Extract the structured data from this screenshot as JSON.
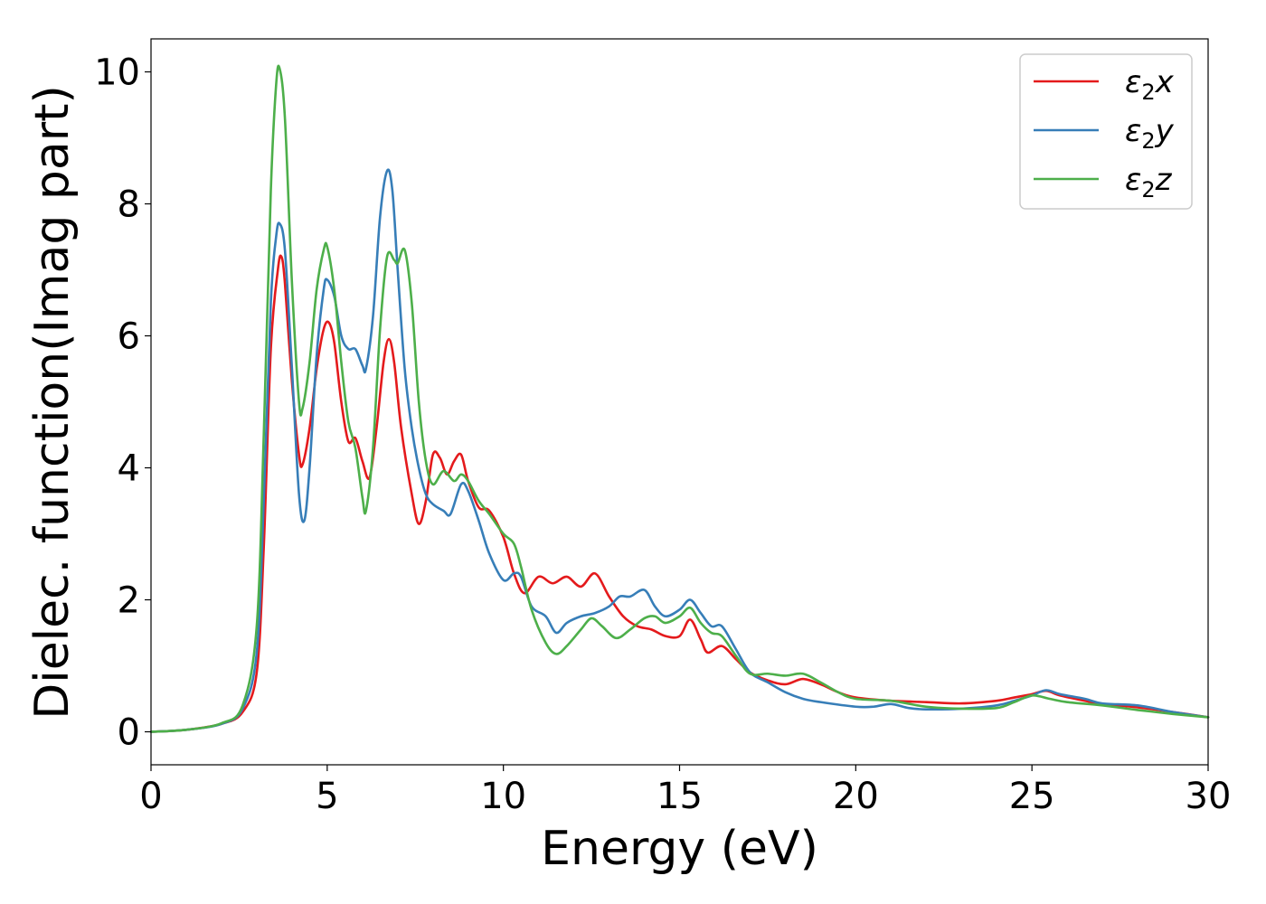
{
  "chart_data": {
    "type": "line",
    "xlabel": "Energy (eV)",
    "ylabel": "Dielec. function(Imag part)",
    "xlim": [
      0,
      30
    ],
    "ylim": [
      -0.5,
      10.5
    ],
    "xticks": [
      0,
      5,
      10,
      15,
      20,
      25,
      30
    ],
    "yticks": [
      0,
      2,
      4,
      6,
      8,
      10
    ],
    "grid": false,
    "legend_position": "top-right",
    "series": [
      {
        "name": "ε₂x",
        "legend_base": "ε",
        "legend_sub": "2",
        "legend_var": "x",
        "color": "#e41a1c",
        "points": [
          [
            0,
            0
          ],
          [
            1,
            0.03
          ],
          [
            2,
            0.12
          ],
          [
            2.6,
            0.3
          ],
          [
            3.0,
            0.9
          ],
          [
            3.2,
            2.8
          ],
          [
            3.4,
            5.8
          ],
          [
            3.6,
            7.0
          ],
          [
            3.7,
            7.2
          ],
          [
            3.8,
            6.8
          ],
          [
            4.0,
            5.3
          ],
          [
            4.2,
            4.2
          ],
          [
            4.3,
            4.05
          ],
          [
            4.5,
            4.6
          ],
          [
            4.7,
            5.5
          ],
          [
            4.9,
            6.1
          ],
          [
            5.05,
            6.2
          ],
          [
            5.2,
            5.9
          ],
          [
            5.4,
            5.0
          ],
          [
            5.6,
            4.4
          ],
          [
            5.8,
            4.45
          ],
          [
            6.0,
            4.1
          ],
          [
            6.2,
            3.85
          ],
          [
            6.4,
            4.6
          ],
          [
            6.6,
            5.6
          ],
          [
            6.75,
            5.95
          ],
          [
            6.9,
            5.6
          ],
          [
            7.1,
            4.6
          ],
          [
            7.4,
            3.6
          ],
          [
            7.6,
            3.15
          ],
          [
            7.8,
            3.5
          ],
          [
            8.0,
            4.2
          ],
          [
            8.2,
            4.15
          ],
          [
            8.4,
            3.9
          ],
          [
            8.6,
            4.1
          ],
          [
            8.8,
            4.2
          ],
          [
            9.0,
            3.8
          ],
          [
            9.3,
            3.4
          ],
          [
            9.6,
            3.35
          ],
          [
            10.0,
            2.95
          ],
          [
            10.3,
            2.4
          ],
          [
            10.6,
            2.1
          ],
          [
            11.0,
            2.35
          ],
          [
            11.4,
            2.25
          ],
          [
            11.8,
            2.35
          ],
          [
            12.2,
            2.2
          ],
          [
            12.6,
            2.4
          ],
          [
            13.0,
            2.05
          ],
          [
            13.4,
            1.75
          ],
          [
            13.8,
            1.6
          ],
          [
            14.2,
            1.55
          ],
          [
            14.6,
            1.45
          ],
          [
            15.0,
            1.45
          ],
          [
            15.3,
            1.7
          ],
          [
            15.6,
            1.4
          ],
          [
            15.8,
            1.2
          ],
          [
            16.2,
            1.3
          ],
          [
            16.6,
            1.1
          ],
          [
            17.0,
            0.9
          ],
          [
            17.5,
            0.78
          ],
          [
            18.0,
            0.72
          ],
          [
            18.5,
            0.8
          ],
          [
            19.0,
            0.72
          ],
          [
            19.5,
            0.6
          ],
          [
            20.0,
            0.52
          ],
          [
            21.0,
            0.47
          ],
          [
            22.0,
            0.45
          ],
          [
            23.0,
            0.43
          ],
          [
            24.0,
            0.47
          ],
          [
            24.5,
            0.52
          ],
          [
            25.0,
            0.57
          ],
          [
            25.4,
            0.62
          ],
          [
            25.8,
            0.55
          ],
          [
            26.5,
            0.47
          ],
          [
            27.0,
            0.42
          ],
          [
            28.0,
            0.37
          ],
          [
            29.0,
            0.3
          ],
          [
            30.0,
            0.22
          ]
        ]
      },
      {
        "name": "ε₂y",
        "legend_base": "ε",
        "legend_sub": "2",
        "legend_var": "y",
        "color": "#377eb8",
        "points": [
          [
            0,
            0
          ],
          [
            1,
            0.03
          ],
          [
            2,
            0.12
          ],
          [
            2.6,
            0.35
          ],
          [
            3.0,
            1.2
          ],
          [
            3.2,
            3.5
          ],
          [
            3.4,
            6.5
          ],
          [
            3.55,
            7.5
          ],
          [
            3.65,
            7.7
          ],
          [
            3.8,
            7.3
          ],
          [
            4.0,
            5.5
          ],
          [
            4.2,
            3.6
          ],
          [
            4.35,
            3.2
          ],
          [
            4.5,
            4.0
          ],
          [
            4.7,
            5.7
          ],
          [
            4.9,
            6.7
          ],
          [
            5.0,
            6.85
          ],
          [
            5.2,
            6.6
          ],
          [
            5.4,
            6.0
          ],
          [
            5.6,
            5.8
          ],
          [
            5.8,
            5.8
          ],
          [
            6.0,
            5.55
          ],
          [
            6.1,
            5.5
          ],
          [
            6.3,
            6.3
          ],
          [
            6.5,
            7.8
          ],
          [
            6.7,
            8.5
          ],
          [
            6.85,
            8.2
          ],
          [
            7.0,
            7.0
          ],
          [
            7.2,
            5.5
          ],
          [
            7.4,
            4.6
          ],
          [
            7.6,
            4.0
          ],
          [
            7.8,
            3.6
          ],
          [
            8.0,
            3.45
          ],
          [
            8.3,
            3.35
          ],
          [
            8.5,
            3.3
          ],
          [
            8.8,
            3.75
          ],
          [
            9.0,
            3.65
          ],
          [
            9.3,
            3.2
          ],
          [
            9.6,
            2.7
          ],
          [
            10.0,
            2.3
          ],
          [
            10.3,
            2.4
          ],
          [
            10.5,
            2.35
          ],
          [
            10.8,
            1.9
          ],
          [
            11.2,
            1.75
          ],
          [
            11.5,
            1.5
          ],
          [
            11.8,
            1.65
          ],
          [
            12.2,
            1.75
          ],
          [
            12.6,
            1.8
          ],
          [
            13.0,
            1.9
          ],
          [
            13.3,
            2.05
          ],
          [
            13.6,
            2.05
          ],
          [
            14.0,
            2.15
          ],
          [
            14.3,
            1.9
          ],
          [
            14.6,
            1.75
          ],
          [
            15.0,
            1.85
          ],
          [
            15.3,
            2.0
          ],
          [
            15.6,
            1.8
          ],
          [
            15.9,
            1.6
          ],
          [
            16.2,
            1.6
          ],
          [
            16.6,
            1.25
          ],
          [
            17.0,
            0.9
          ],
          [
            17.5,
            0.75
          ],
          [
            18.0,
            0.6
          ],
          [
            18.5,
            0.5
          ],
          [
            19.0,
            0.45
          ],
          [
            20.0,
            0.38
          ],
          [
            20.5,
            0.38
          ],
          [
            21.0,
            0.42
          ],
          [
            21.5,
            0.36
          ],
          [
            22.0,
            0.34
          ],
          [
            23.0,
            0.35
          ],
          [
            24.0,
            0.4
          ],
          [
            24.5,
            0.47
          ],
          [
            25.0,
            0.55
          ],
          [
            25.4,
            0.63
          ],
          [
            25.8,
            0.57
          ],
          [
            26.5,
            0.5
          ],
          [
            27.0,
            0.43
          ],
          [
            28.0,
            0.4
          ],
          [
            29.0,
            0.3
          ],
          [
            30.0,
            0.22
          ]
        ]
      },
      {
        "name": "ε₂z",
        "legend_base": "ε",
        "legend_sub": "2",
        "legend_var": "z",
        "color": "#4daf4a",
        "points": [
          [
            0,
            0
          ],
          [
            1,
            0.03
          ],
          [
            2,
            0.13
          ],
          [
            2.6,
            0.4
          ],
          [
            3.0,
            1.6
          ],
          [
            3.2,
            4.5
          ],
          [
            3.4,
            8.2
          ],
          [
            3.55,
            9.8
          ],
          [
            3.65,
            10.05
          ],
          [
            3.8,
            9.3
          ],
          [
            4.0,
            6.8
          ],
          [
            4.2,
            5.0
          ],
          [
            4.3,
            4.9
          ],
          [
            4.5,
            5.6
          ],
          [
            4.7,
            6.7
          ],
          [
            4.9,
            7.3
          ],
          [
            5.0,
            7.35
          ],
          [
            5.2,
            6.7
          ],
          [
            5.4,
            5.6
          ],
          [
            5.6,
            4.7
          ],
          [
            5.8,
            4.3
          ],
          [
            6.0,
            3.55
          ],
          [
            6.1,
            3.35
          ],
          [
            6.3,
            4.3
          ],
          [
            6.5,
            6.1
          ],
          [
            6.7,
            7.2
          ],
          [
            6.9,
            7.15
          ],
          [
            7.0,
            7.1
          ],
          [
            7.2,
            7.3
          ],
          [
            7.4,
            6.5
          ],
          [
            7.6,
            5.0
          ],
          [
            7.8,
            4.1
          ],
          [
            8.0,
            3.75
          ],
          [
            8.3,
            3.95
          ],
          [
            8.6,
            3.8
          ],
          [
            8.8,
            3.9
          ],
          [
            9.0,
            3.8
          ],
          [
            9.3,
            3.5
          ],
          [
            9.6,
            3.3
          ],
          [
            10.0,
            3.0
          ],
          [
            10.3,
            2.85
          ],
          [
            10.5,
            2.5
          ],
          [
            10.8,
            1.85
          ],
          [
            11.2,
            1.35
          ],
          [
            11.5,
            1.18
          ],
          [
            11.8,
            1.3
          ],
          [
            12.2,
            1.55
          ],
          [
            12.5,
            1.72
          ],
          [
            12.8,
            1.6
          ],
          [
            13.2,
            1.42
          ],
          [
            13.6,
            1.55
          ],
          [
            14.0,
            1.72
          ],
          [
            14.3,
            1.75
          ],
          [
            14.6,
            1.65
          ],
          [
            15.0,
            1.75
          ],
          [
            15.3,
            1.88
          ],
          [
            15.6,
            1.65
          ],
          [
            15.9,
            1.5
          ],
          [
            16.2,
            1.45
          ],
          [
            16.6,
            1.15
          ],
          [
            17.0,
            0.88
          ],
          [
            17.5,
            0.88
          ],
          [
            18.0,
            0.85
          ],
          [
            18.5,
            0.88
          ],
          [
            19.0,
            0.75
          ],
          [
            19.5,
            0.6
          ],
          [
            20.0,
            0.5
          ],
          [
            21.0,
            0.47
          ],
          [
            22.0,
            0.38
          ],
          [
            23.0,
            0.35
          ],
          [
            24.0,
            0.36
          ],
          [
            24.5,
            0.45
          ],
          [
            25.0,
            0.55
          ],
          [
            25.5,
            0.5
          ],
          [
            26.0,
            0.45
          ],
          [
            27.0,
            0.4
          ],
          [
            28.0,
            0.33
          ],
          [
            29.0,
            0.27
          ],
          [
            30.0,
            0.22
          ]
        ]
      }
    ]
  }
}
